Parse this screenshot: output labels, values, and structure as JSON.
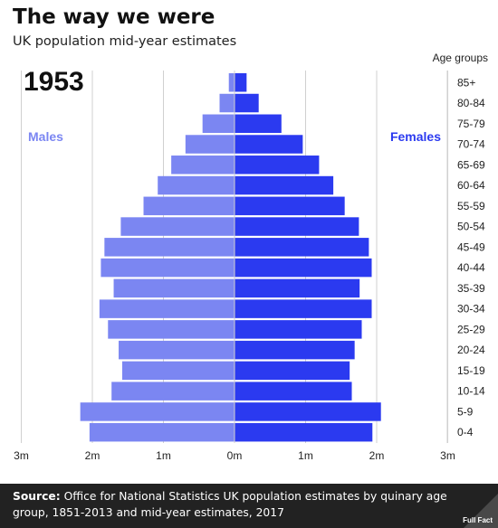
{
  "header": {
    "title": "The way we were",
    "subtitle": "UK population mid-year estimates"
  },
  "footer": {
    "source_label": "Source:",
    "source_text": "Office for National Statistics UK population estimates by quinary age group, 1851-2013 and mid-year estimates, 2017",
    "logo_text": "Full Fact"
  },
  "colors": {
    "males": "#7b86f2",
    "females": "#2b3af0",
    "grid": "#d0d0d0",
    "footer_bg": "#222222"
  },
  "chart_data": {
    "type": "bar",
    "orientation": "horizontal",
    "subtype": "population pyramid",
    "year_label": "1953",
    "legend_title": "Age groups",
    "categories": [
      "85+",
      "80-84",
      "75-79",
      "70-74",
      "65-69",
      "60-64",
      "55-59",
      "50-54",
      "45-49",
      "40-44",
      "35-39",
      "30-34",
      "25-29",
      "20-24",
      "15-19",
      "10-14",
      "5-9",
      "0-4"
    ],
    "series": [
      {
        "name": "Males",
        "values": [
          0.08,
          0.21,
          0.45,
          0.69,
          0.89,
          1.08,
          1.28,
          1.6,
          1.83,
          1.88,
          1.7,
          1.9,
          1.78,
          1.63,
          1.58,
          1.73,
          2.17,
          2.04
        ]
      },
      {
        "name": "Females",
        "values": [
          0.17,
          0.34,
          0.66,
          0.96,
          1.19,
          1.39,
          1.55,
          1.75,
          1.89,
          1.93,
          1.76,
          1.93,
          1.79,
          1.69,
          1.62,
          1.65,
          2.06,
          1.94
        ]
      }
    ],
    "xlim": [
      -3,
      3
    ],
    "x_ticks": [
      {
        "value": -3,
        "label": "3m"
      },
      {
        "value": -2,
        "label": "2m"
      },
      {
        "value": -1,
        "label": "1m"
      },
      {
        "value": 0,
        "label": "0m"
      },
      {
        "value": 1,
        "label": "1m"
      },
      {
        "value": 2,
        "label": "2m"
      },
      {
        "value": 3,
        "label": "3m"
      }
    ],
    "grid": true
  }
}
